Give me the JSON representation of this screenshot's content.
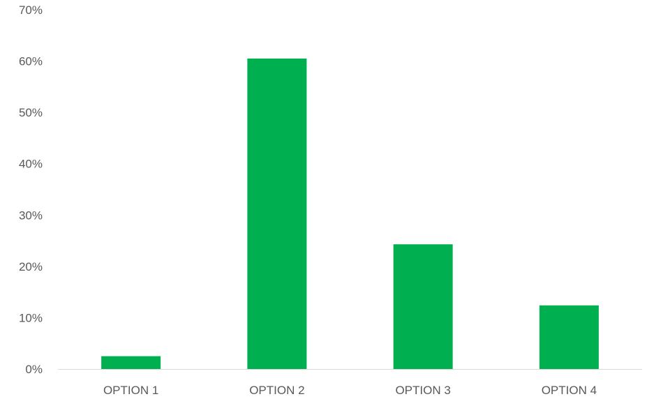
{
  "chart_data": {
    "type": "bar",
    "title": "",
    "xlabel": "",
    "ylabel": "",
    "categories": [
      "OPTION 1",
      "OPTION 2",
      "OPTION 3",
      "OPTION 4"
    ],
    "values": [
      0.025,
      0.605,
      0.243,
      0.124
    ],
    "ylim": [
      0,
      0.7
    ],
    "y_ticks": [
      0,
      0.1,
      0.2,
      0.3,
      0.4,
      0.5,
      0.6,
      0.7
    ],
    "y_tick_labels": [
      "0%",
      "10%",
      "20%",
      "30%",
      "40%",
      "50%",
      "60%",
      "70%"
    ],
    "grid": false,
    "legend": "none",
    "colors": {
      "bar": "#00B050",
      "axis": "#D9D9D9",
      "text": "#595959"
    }
  }
}
